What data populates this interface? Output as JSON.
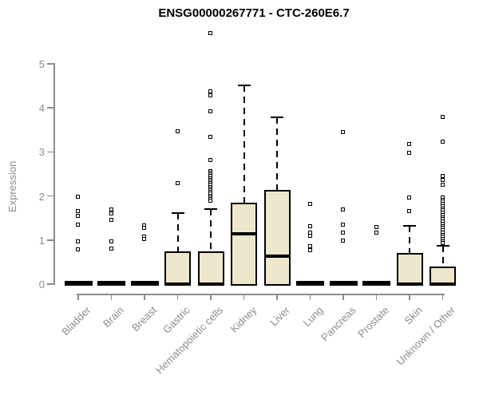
{
  "chart_data": {
    "type": "boxplot",
    "title": "ENSG00000267771 - CTC-260E6.7",
    "ylabel": "Expression",
    "xlabel": "",
    "ylim": [
      0,
      5
    ],
    "yticks": [
      0,
      1,
      2,
      3,
      4,
      5
    ],
    "grid": false,
    "legend": "none",
    "colors": {
      "box_fill": "#EDE7CC",
      "box_border": "#000000",
      "axis": "#8c8c8c",
      "title": "#000000"
    },
    "categories": [
      "Bladder",
      "Brain",
      "Breast",
      "Gastric",
      "Hematopoietic cells",
      "Kidney",
      "Liver",
      "Lung",
      "Pancreas",
      "Prostate",
      "Skin",
      "Unknown / Other"
    ],
    "series": [
      {
        "name": "Bladder",
        "whisker_low": 0,
        "q1": 0,
        "median": 0,
        "q3": 0,
        "whisker_high": 0,
        "outliers": [
          1.97,
          1.65,
          1.54,
          1.34,
          0.96,
          0.78
        ]
      },
      {
        "name": "Brain",
        "whisker_low": 0,
        "q1": 0,
        "median": 0,
        "q3": 0,
        "whisker_high": 0,
        "outliers": [
          1.68,
          1.6,
          1.45,
          0.96,
          0.8
        ]
      },
      {
        "name": "Breast",
        "whisker_low": 0,
        "q1": 0,
        "median": 0,
        "q3": 0,
        "whisker_high": 0,
        "outliers": [
          1.32,
          1.26,
          1.06,
          1.01
        ]
      },
      {
        "name": "Gastric",
        "whisker_low": 0,
        "q1": 0,
        "median": 0,
        "q3": 0.71,
        "whisker_high": 1.61,
        "outliers": [
          3.46,
          2.28
        ]
      },
      {
        "name": "Hematopoietic cells",
        "whisker_low": 0,
        "q1": 0,
        "median": 0,
        "q3": 0.71,
        "whisker_high": 1.7,
        "outliers": [
          5.69,
          4.37,
          4.28,
          3.91,
          3.33,
          2.8,
          2.56,
          2.52,
          2.48,
          2.44,
          2.4,
          2.36,
          2.32,
          2.28,
          2.24,
          2.2,
          2.16,
          2.12,
          2.08,
          2.04,
          2.0,
          1.96,
          1.92,
          1.88
        ]
      },
      {
        "name": "Kidney",
        "whisker_low": 0,
        "q1": 0,
        "median": 1.15,
        "q3": 1.82,
        "whisker_high": 4.51,
        "outliers": []
      },
      {
        "name": "Liver",
        "whisker_low": 0,
        "q1": 0,
        "median": 0.63,
        "q3": 2.1,
        "whisker_high": 3.79,
        "outliers": []
      },
      {
        "name": "Lung",
        "whisker_low": 0,
        "q1": 0,
        "median": 0,
        "q3": 0,
        "whisker_high": 0,
        "outliers": [
          1.81,
          1.3,
          1.16,
          1.09,
          0.85,
          0.76
        ]
      },
      {
        "name": "Pancreas",
        "whisker_low": 0,
        "q1": 0,
        "median": 0,
        "q3": 0,
        "whisker_high": 0,
        "outliers": [
          3.44,
          1.68,
          1.34,
          1.16,
          0.98
        ]
      },
      {
        "name": "Prostate",
        "whisker_low": 0,
        "q1": 0,
        "median": 0,
        "q3": 0,
        "whisker_high": 0,
        "outliers": [
          1.29,
          1.16
        ]
      },
      {
        "name": "Skin",
        "whisker_low": 0,
        "q1": 0,
        "median": 0,
        "q3": 0.67,
        "whisker_high": 1.32,
        "outliers": [
          3.17,
          2.97,
          1.96,
          1.65
        ]
      },
      {
        "name": "Unknown / Other",
        "whisker_low": 0,
        "q1": 0,
        "median": 0,
        "q3": 0.36,
        "whisker_high": 0.87,
        "outliers": [
          3.79,
          3.22,
          2.45,
          2.36,
          2.25,
          1.96,
          1.91,
          1.86,
          1.81,
          1.76,
          1.71,
          1.66,
          1.61,
          1.56,
          1.51,
          1.46,
          1.41,
          1.36,
          1.31,
          1.26,
          1.21,
          1.16,
          1.11,
          1.06,
          1.01,
          0.96,
          0.92
        ]
      }
    ]
  }
}
